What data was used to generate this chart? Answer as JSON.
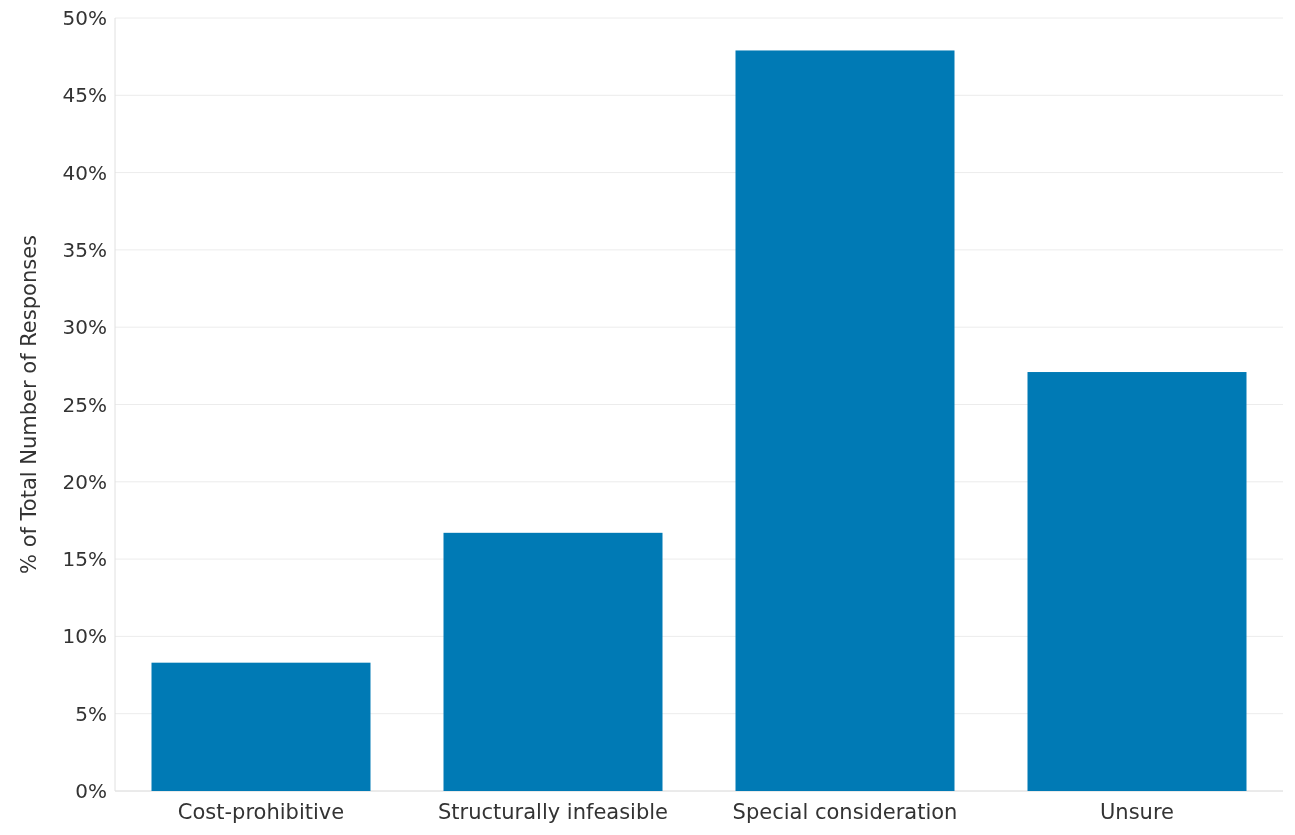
{
  "chart_data": {
    "type": "bar",
    "ylabel": "% of Total Number of Responses",
    "categories": [
      "Cost-prohibitive",
      "Structurally infeasible",
      "Special consideration",
      "Unsure"
    ],
    "values": [
      8.3,
      16.7,
      47.9,
      27.1
    ],
    "color": "#007ab5",
    "ylim": [
      0,
      50
    ],
    "yticks": [
      {
        "value": 0,
        "label": "0%"
      },
      {
        "value": 5,
        "label": "5%"
      },
      {
        "value": 10,
        "label": "10%"
      },
      {
        "value": 15,
        "label": "15%"
      },
      {
        "value": 20,
        "label": "20%"
      },
      {
        "value": 25,
        "label": "25%"
      },
      {
        "value": 30,
        "label": "30%"
      },
      {
        "value": 35,
        "label": "35%"
      },
      {
        "value": 40,
        "label": "40%"
      },
      {
        "value": 45,
        "label": "45%"
      },
      {
        "value": 50,
        "label": "50%"
      }
    ],
    "grid": "y"
  }
}
